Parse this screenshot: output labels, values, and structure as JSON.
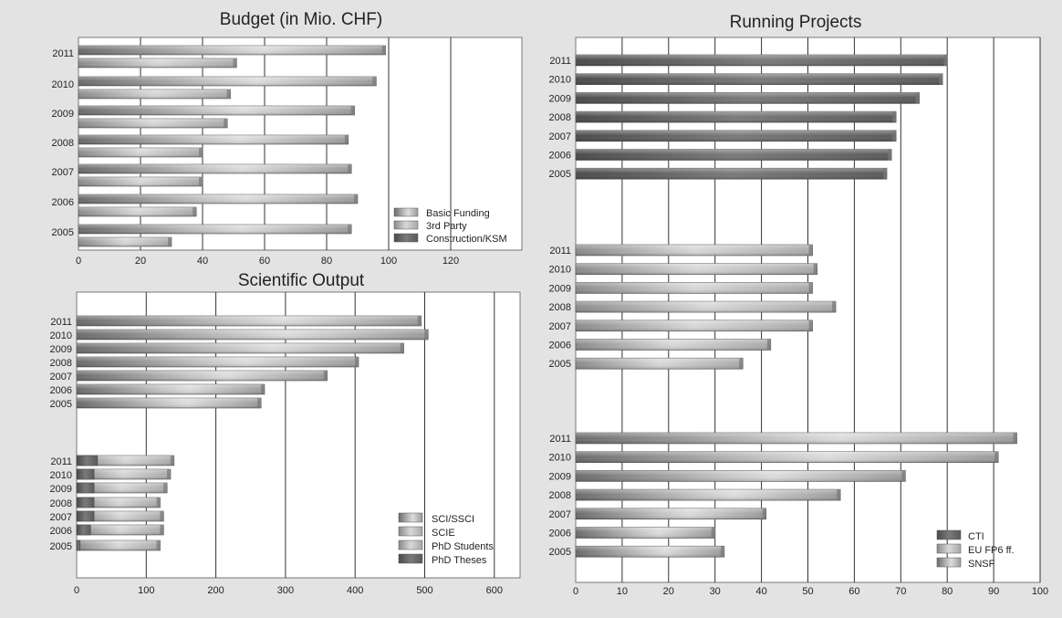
{
  "colors": {
    "background": "#e3e3e3",
    "plot_bg": "#ffffff",
    "gridline": "#333333",
    "bar_light": "#d6d6d6",
    "bar_mid": "#a3a3a3",
    "bar_dark": "#5c5c5c"
  },
  "chart_data": [
    {
      "id": "budget",
      "type": "bar",
      "orientation": "horizontal",
      "title": "Budget (in Mio. CHF)",
      "categories": [
        "2011",
        "2010",
        "2009",
        "2008",
        "2007",
        "2006",
        "2005"
      ],
      "series": [
        {
          "name": "Basic Funding",
          "values": [
            99,
            96,
            89,
            87,
            88,
            90,
            88
          ]
        },
        {
          "name": "3rd Party",
          "values": [
            51,
            49,
            48,
            40,
            40,
            38,
            30
          ]
        },
        {
          "name": "Construction/KSM",
          "values": [
            0,
            0,
            0,
            0,
            0,
            0,
            0
          ]
        }
      ],
      "xlim": [
        0,
        140
      ],
      "xticks": [
        0,
        20,
        40,
        60,
        80,
        100,
        120
      ],
      "grid": true,
      "legend": "bottom-right"
    },
    {
      "id": "scientific-output",
      "type": "bar",
      "orientation": "horizontal",
      "title": "Scientific Output",
      "groups": [
        {
          "categories": [
            "2011",
            "2010",
            "2009",
            "2008",
            "2007",
            "2006",
            "2005"
          ],
          "series": [
            {
              "name": "SCI/SSCI",
              "values": [
                495,
                505,
                470,
                405,
                360,
                270,
                265
              ]
            },
            {
              "name": "SCIE",
              "values": [
                0,
                0,
                0,
                0,
                0,
                0,
                0
              ]
            }
          ]
        },
        {
          "categories": [
            "2011",
            "2010",
            "2009",
            "2008",
            "2007",
            "2006",
            "2005"
          ],
          "series": [
            {
              "name": "PhD Students",
              "values": [
                140,
                135,
                130,
                120,
                125,
                125,
                120
              ]
            },
            {
              "name": "PhD Theses",
              "values": [
                30,
                25,
                25,
                25,
                25,
                20,
                5
              ]
            }
          ]
        }
      ],
      "xlim": [
        0,
        650
      ],
      "xticks": [
        0,
        100,
        200,
        300,
        400,
        500,
        600
      ],
      "grid": true,
      "legend": "bottom-right"
    },
    {
      "id": "running-projects",
      "type": "bar",
      "orientation": "horizontal",
      "title": "Running Projects",
      "groups": [
        {
          "series_name": "CTI",
          "categories": [
            "2011",
            "2010",
            "2009",
            "2008",
            "2007",
            "2006",
            "2005"
          ],
          "values": [
            80,
            79,
            74,
            69,
            69,
            68,
            67
          ]
        },
        {
          "series_name": "EU FP6 ff.",
          "categories": [
            "2011",
            "2010",
            "2009",
            "2008",
            "2007",
            "2006",
            "2005"
          ],
          "values": [
            51,
            52,
            51,
            56,
            51,
            42,
            36
          ]
        },
        {
          "series_name": "SNSF",
          "categories": [
            "2011",
            "2010",
            "2009",
            "2008",
            "2007",
            "2006",
            "2005"
          ],
          "values": [
            95,
            91,
            71,
            57,
            41,
            30,
            32
          ]
        }
      ],
      "xlim": [
        0,
        100
      ],
      "xticks": [
        0,
        10,
        20,
        30,
        40,
        50,
        60,
        70,
        80,
        90,
        100
      ],
      "grid": true,
      "legend": "bottom-right"
    }
  ]
}
